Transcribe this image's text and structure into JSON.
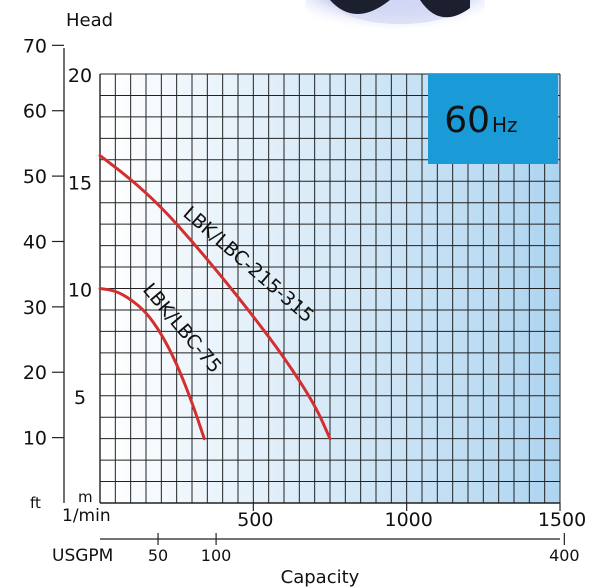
{
  "badge": {
    "value": "60",
    "unit": "Hz"
  },
  "labels": {
    "head": "Head",
    "capacity": "Capacity",
    "ft": "ft",
    "m": "m",
    "lpm": "1/min",
    "usgpm": "USGPM"
  },
  "colors": {
    "curve": "#d32f2f",
    "badge_bg": "#1a9ad6",
    "grid": "#222222",
    "gradient_start": "#ffffff",
    "gradient_end": "#aed4f0"
  },
  "chart_data": {
    "type": "line",
    "title": "",
    "xlabel": "Capacity",
    "ylabel": "Head",
    "x_unit": "1/min",
    "y_unit": "m",
    "xlim": [
      0,
      1500
    ],
    "ylim": [
      0,
      20
    ],
    "x_ticks": [
      500,
      1000,
      1500
    ],
    "y_ticks": [
      5,
      10,
      15,
      20
    ],
    "secondary_y": {
      "unit": "ft",
      "ticks": [
        10,
        20,
        30,
        40,
        50,
        60,
        70
      ]
    },
    "secondary_x": {
      "unit": "USGPM",
      "ticks": [
        50,
        100,
        400
      ]
    },
    "grid": true,
    "series": [
      {
        "name": "LBK/LBC-215-315",
        "x": [
          0,
          100,
          200,
          300,
          400,
          500,
          600,
          700,
          750
        ],
        "y": [
          16.2,
          15.1,
          13.8,
          12.2,
          10.5,
          8.7,
          6.8,
          4.6,
          3.0
        ]
      },
      {
        "name": "LBK/LBC-75",
        "x": [
          0,
          50,
          100,
          150,
          200,
          250,
          300,
          340
        ],
        "y": [
          10.0,
          9.9,
          9.5,
          8.9,
          7.9,
          6.5,
          4.7,
          3.0
        ]
      }
    ]
  }
}
